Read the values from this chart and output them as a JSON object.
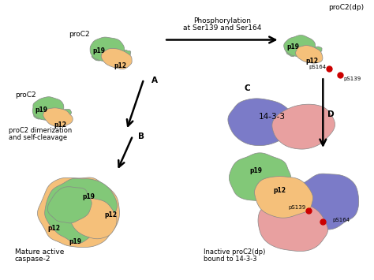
{
  "background_color": "#ffffff",
  "green_color": "#82C878",
  "orange_color": "#F5C07A",
  "blue_color": "#7B7BC8",
  "pink_color": "#E8A0A0",
  "red_dot_color": "#CC0000",
  "edge_color": "#888888",
  "labels": {
    "proc2_top": "proC2",
    "proc2_left": "proC2",
    "proc2dp": "proC2(dp)",
    "label_a": "A",
    "label_b": "B",
    "label_c": "C",
    "label_d": "D",
    "phospho_text1": "Phosphorylation",
    "phospho_text2": "at Ser139 and Ser164",
    "proc2_dim": "proC2 dimerization",
    "self_cleave": "and self-cleavage",
    "mature": "Mature active",
    "caspase2": "caspase-2",
    "label_1433": "14-3-3",
    "ps164_c": "pS164",
    "ps139_c": "pS139",
    "ps164_d": "pS164",
    "ps139_d": "pS139",
    "inactive": "Inactive proC2(dp)",
    "bound": "bound to 14-3-3",
    "p19": "p19",
    "p12": "p12"
  }
}
